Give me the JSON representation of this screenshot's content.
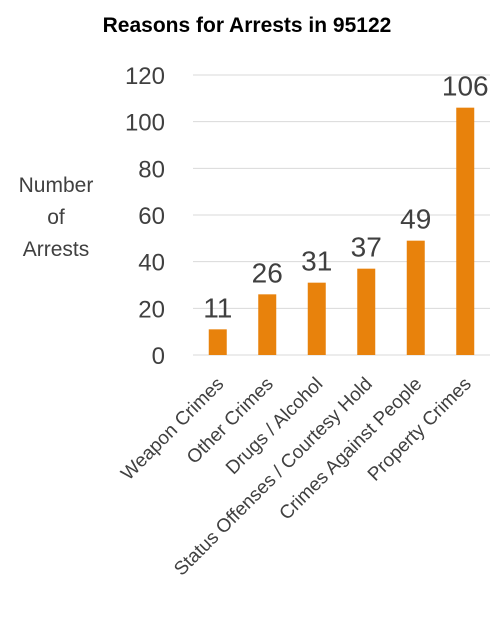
{
  "chart_data": {
    "type": "bar",
    "title": "Reasons for Arrests in 95122",
    "xlabel": "",
    "ylabel": [
      "Number",
      "of",
      "Arrests"
    ],
    "categories": [
      "Weapon Crimes",
      "Other Crimes",
      "Drugs / Alcohol",
      "Status Offenses / Courtesy Hold",
      "Crimes Against People",
      "Property Crimes"
    ],
    "values": [
      11,
      26,
      31,
      37,
      49,
      106
    ],
    "ylim": [
      0,
      120
    ],
    "yticks": [
      0,
      20,
      40,
      60,
      80,
      100,
      120
    ],
    "grid": true,
    "data_labels": true,
    "colors": {
      "bar": "#E8820C",
      "grid": "#D9D9D9",
      "tick_text": "#404040",
      "label_text": "#404040"
    }
  }
}
